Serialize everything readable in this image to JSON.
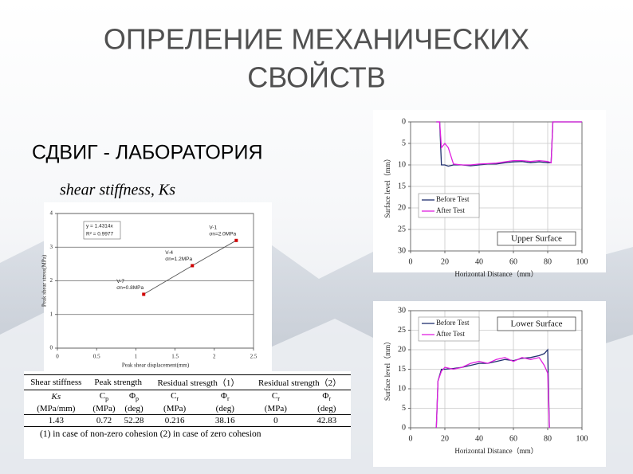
{
  "slide": {
    "title": [
      "ОПРЕЛЕНИЕ МЕХАНИЧЕСКИХ",
      "СВОЙСТВ"
    ],
    "heading": "СДВИГ - ЛАБОРАТОРИЯ",
    "subheading": "shear stiffness, Ks"
  },
  "chart_data": [
    {
      "type": "line",
      "markers": true,
      "x_label": "Peak shear displacement(mm)",
      "y_label": "Peak shear stress(MPa)",
      "x": [
        1.1,
        1.72,
        2.28
      ],
      "values": [
        1.6,
        2.45,
        3.2
      ],
      "color": "#d00000",
      "line_color": "#555555",
      "point_labels": [
        [
          "V-7",
          "σn=0.8MPa"
        ],
        [
          "V-4",
          "σn=1.2MPa"
        ],
        [
          "V-1",
          "σn=2.0MPa"
        ]
      ],
      "annotations": [
        "y = 1.4314x",
        "R² = 0.9977"
      ],
      "xlim": [
        0,
        2.5
      ],
      "xticks": [
        0,
        0.5,
        1,
        1.5,
        2,
        2.5
      ],
      "ylim": [
        0,
        4
      ],
      "yticks": [
        0,
        1,
        2,
        3,
        4
      ],
      "grid": "y"
    },
    {
      "type": "line",
      "title": "Upper Surface",
      "x_label": "Horizontal Distance（mm）",
      "y_label": "Surface level（mm）",
      "x": [
        15,
        17,
        18,
        20,
        22,
        25,
        30,
        35,
        40,
        45,
        50,
        55,
        60,
        65,
        70,
        75,
        80,
        82,
        83,
        85,
        100
      ],
      "series": [
        {
          "name": "Before Test",
          "color": "#1f2f6e",
          "values": [
            0,
            0,
            10,
            10,
            10.3,
            10,
            10,
            10.2,
            10,
            9.8,
            9.8,
            9.5,
            9.3,
            9.2,
            9.5,
            9.3,
            9.5,
            9.5,
            0,
            0,
            0
          ]
        },
        {
          "name": "After Test",
          "color": "#e020e0",
          "values": [
            0,
            0,
            6,
            5,
            6,
            9.8,
            10,
            10,
            9.8,
            9.7,
            9.6,
            9.3,
            9,
            9,
            9.2,
            9,
            9.2,
            9.5,
            0,
            0,
            0
          ]
        }
      ],
      "xlim": [
        0,
        100
      ],
      "xticks": [
        0,
        20,
        40,
        60,
        80,
        100
      ],
      "ylim": [
        0,
        30
      ],
      "yticks": [
        0,
        5,
        10,
        15,
        20,
        25,
        30
      ],
      "y_inverted": true,
      "grid": "both",
      "legend": "lower-left"
    },
    {
      "type": "line",
      "title": "Lower Surface",
      "x_label": "Horizontal Distance（mm）",
      "y_label": "Surface level（mm）",
      "x": [
        15,
        16,
        18,
        20,
        25,
        30,
        35,
        40,
        45,
        50,
        55,
        60,
        65,
        70,
        75,
        78,
        80,
        81
      ],
      "series": [
        {
          "name": "Before Test",
          "color": "#1f2f6e",
          "values": [
            0,
            12,
            15,
            15,
            15.2,
            15.5,
            16,
            16.5,
            16.5,
            17,
            17.5,
            17.2,
            17.8,
            18,
            18.5,
            19,
            20,
            0
          ]
        },
        {
          "name": "After Test",
          "color": "#e020e0",
          "values": [
            0,
            12,
            14.5,
            15.5,
            15,
            15.5,
            16.5,
            17,
            16.5,
            17.5,
            18,
            17,
            18,
            17.5,
            18,
            16,
            14,
            0
          ]
        }
      ],
      "xlim": [
        0,
        100
      ],
      "xticks": [
        0,
        20,
        40,
        60,
        80,
        100
      ],
      "ylim": [
        0,
        30
      ],
      "yticks": [
        0,
        5,
        10,
        15,
        20,
        25,
        30
      ],
      "grid": "both",
      "legend": "upper-left"
    }
  ],
  "table": {
    "group_header": [
      "Shear stiffness",
      "Peak strength",
      "Residual stresgth（1）",
      "Residual strength（2）"
    ],
    "symbols": [
      "Ks",
      {
        "base": "C",
        "sub": "p"
      },
      {
        "base": "Φ",
        "sub": "p"
      },
      {
        "base": "C",
        "sub": "r"
      },
      {
        "base": "Φ",
        "sub": "r"
      },
      {
        "base": "C",
        "sub": "r"
      },
      {
        "base": "Φ",
        "sub": "r"
      }
    ],
    "units": [
      "(MPa/mm)",
      "(MPa)",
      "(deg)",
      "(MPa)",
      "(deg)",
      "(MPa)",
      "(deg)"
    ],
    "rows": [
      [
        "1.43",
        "0.72",
        "52.28",
        "0.216",
        "38.16",
        "0",
        "42.83"
      ]
    ],
    "note": "(1) in case of non-zero cohesion (2) in case of zero cohesion"
  }
}
